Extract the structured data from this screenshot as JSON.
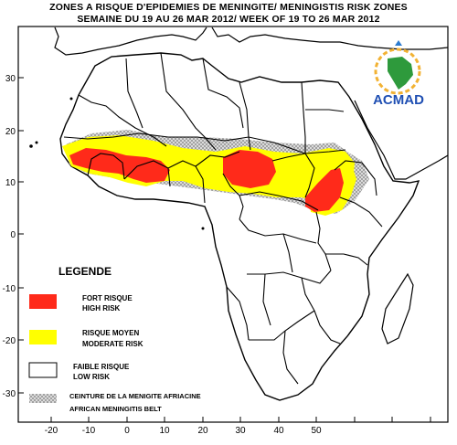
{
  "title": {
    "line1": "ZONES A RISQUE D'EPIDEMIES DE MENINGITE/ MENINGISTIS RISK ZONES",
    "line2": "SEMAINE DU  19  AU 26 MAR 2012/ WEEK OF 19 TO 26 MAR 2012"
  },
  "logo": {
    "text": "ACMAD"
  },
  "axes": {
    "x_ticks": [
      "-20",
      "-10",
      "0",
      "10",
      "20",
      "30",
      "40",
      "50"
    ],
    "y_ticks": [
      "30",
      "20",
      "10",
      "0",
      "-10",
      "-20",
      "-30"
    ]
  },
  "legend": {
    "title": "LEGENDE",
    "items": [
      {
        "fr": "FORT RISQUE",
        "en": "HIGH RISK",
        "color": "#ff2a1a"
      },
      {
        "fr": "RISQUE MOYEN",
        "en": "MODERATE RISK",
        "color": "#ffff00"
      },
      {
        "fr": "FAIBLE RISQUE",
        "en": "LOW RISK",
        "color": "#ffffff"
      },
      {
        "fr": "CEINTURE DE LA MENIGITE AFRIACINE",
        "en": "AFRICAN MENINGITIS BELT",
        "color": "#bbbbbb"
      }
    ]
  },
  "colors": {
    "high_risk": "#ff2a1a",
    "moderate_risk": "#ffff00",
    "belt_hatch": "#8a8a8a"
  }
}
